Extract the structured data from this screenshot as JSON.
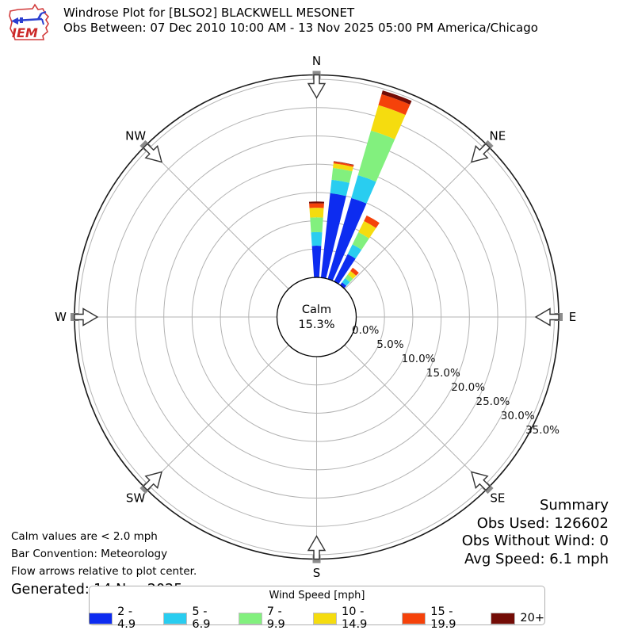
{
  "header": {
    "logo_text": "IEM",
    "title": "Windrose Plot for [BLSO2] BLACKWELL MESONET",
    "subtitle": "Obs Between: 07 Dec 2010 10:00 AM - 13 Nov 2025 05:00 PM America/Chicago"
  },
  "plot": {
    "compass_points": [
      {
        "label": "N",
        "azimuth_deg": 0
      },
      {
        "label": "NE",
        "azimuth_deg": 45
      },
      {
        "label": "E",
        "azimuth_deg": 90
      },
      {
        "label": "SE",
        "azimuth_deg": 135
      },
      {
        "label": "S",
        "azimuth_deg": 180
      },
      {
        "label": "SW",
        "azimuth_deg": 225
      },
      {
        "label": "W",
        "azimuth_deg": 270
      },
      {
        "label": "NW",
        "azimuth_deg": 315
      }
    ],
    "ring_labels": [
      "0.0%",
      "5.0%",
      "10.0%",
      "15.0%",
      "20.0%",
      "25.0%",
      "30.0%",
      "35.0%"
    ],
    "calm_label": "Calm",
    "calm_value": "15.3%"
  },
  "chart_data": {
    "type": "windrose",
    "title": "Windrose Plot for [BLSO2] BLACKWELL MESONET",
    "units": "mph",
    "calm_percent": 15.3,
    "calm_threshold": "< 2.0 mph",
    "rings_percent": [
      0,
      5,
      10,
      15,
      20,
      25,
      30,
      35
    ],
    "rmax_percent": 35.8,
    "bar_width_deg": 7.5,
    "speed_bins": [
      {
        "label": "2 - 4.9",
        "color": "#0d2cf0"
      },
      {
        "label": "5 - 6.9",
        "color": "#29cdf0"
      },
      {
        "label": "7 - 9.9",
        "color": "#82f07e"
      },
      {
        "label": "10 - 14.9",
        "color": "#f5dc0f"
      },
      {
        "label": "15 - 19.9",
        "color": "#f5420a"
      },
      {
        "label": "20+",
        "color": "#730c06"
      }
    ],
    "directions": [
      {
        "azimuth_deg": 0,
        "total_percent": 13.4,
        "values": [
          5.6,
          2.4,
          2.6,
          1.7,
          0.8,
          0.3
        ]
      },
      {
        "azimuth_deg": 10,
        "total_percent": 20.7,
        "values": [
          15.0,
          2.4,
          2.1,
          0.8,
          0.3,
          0.1
        ]
      },
      {
        "azimuth_deg": 20,
        "total_percent": 34.7,
        "values": [
          14.9,
          4.2,
          8.2,
          4.7,
          2.0,
          0.7
        ]
      },
      {
        "azimuth_deg": 30,
        "total_percent": 13.0,
        "values": [
          5.4,
          1.9,
          2.4,
          2.2,
          1.1,
          0.0
        ]
      },
      {
        "azimuth_deg": 40,
        "total_percent": 3.8,
        "values": [
          0.6,
          0.9,
          0.8,
          0.8,
          0.7,
          0.0
        ]
      }
    ]
  },
  "notes": {
    "line1": "Calm values are < 2.0 mph",
    "line2": "Bar Convention: Meteorology",
    "line3": "Flow arrows relative to plot center.",
    "generated": "Generated: 14 Nov 2025"
  },
  "summary": {
    "title": "Summary",
    "obs_used": "Obs Used: 126602",
    "obs_without_wind": "Obs Without Wind: 0",
    "avg_speed": "Avg Speed: 6.1 mph"
  },
  "legend": {
    "title": "Wind Speed [mph]"
  }
}
